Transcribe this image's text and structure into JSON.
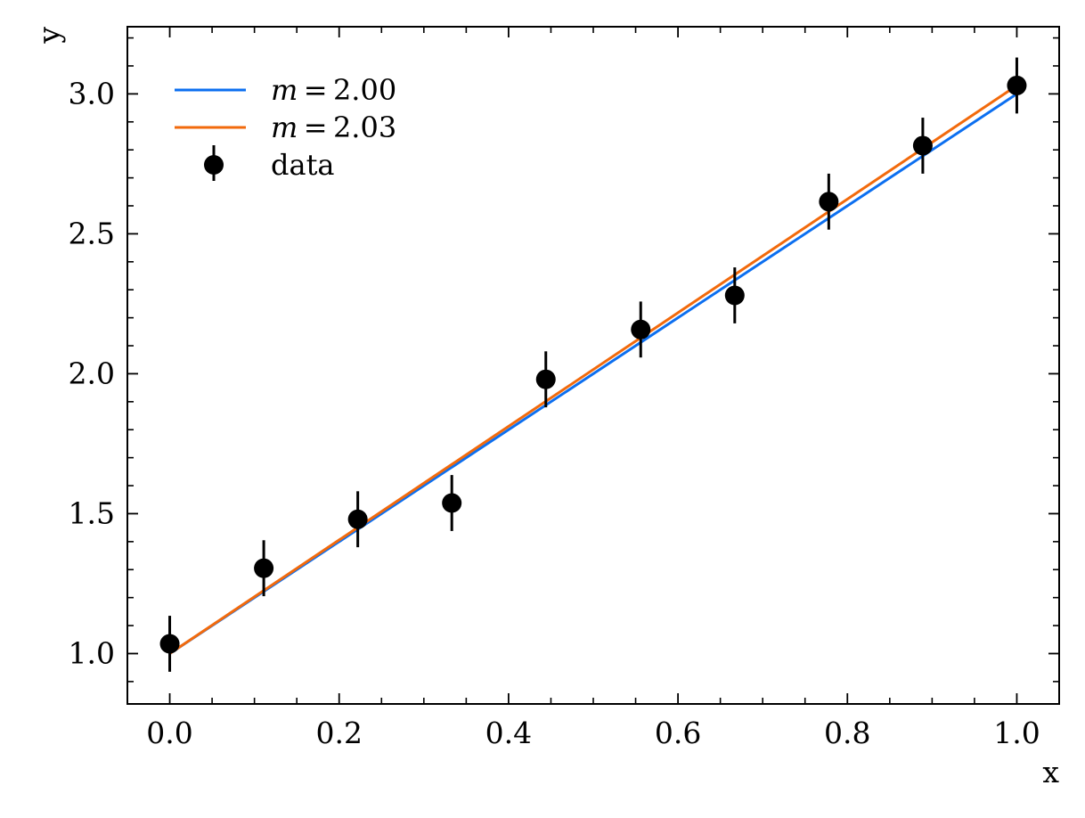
{
  "chart_data": {
    "type": "line",
    "xlabel": "x",
    "ylabel": "y",
    "xlim": [
      -0.05,
      1.05
    ],
    "ylim": [
      0.82,
      3.24
    ],
    "xticks": [
      0.0,
      0.2,
      0.4,
      0.6,
      0.8,
      1.0
    ],
    "xtick_labels": [
      "0.0",
      "0.2",
      "0.4",
      "0.6",
      "0.8",
      "1.0"
    ],
    "xminor_step": 0.05,
    "yticks": [
      1.0,
      1.5,
      2.0,
      2.5,
      3.0
    ],
    "ytick_labels": [
      "1.0",
      "1.5",
      "2.0",
      "2.5",
      "3.0"
    ],
    "yminor_step": 0.1,
    "grid": false,
    "legend_position": "top-left",
    "series": [
      {
        "name": "m = 2.00",
        "legend_label": {
          "italic": "m",
          "rest": " = 2.00"
        },
        "kind": "line",
        "color": "#0C6FF0",
        "x": [
          0.0,
          1.0
        ],
        "y": [
          1.0,
          3.0
        ]
      },
      {
        "name": "m = 2.03",
        "legend_label": {
          "italic": "m",
          "rest": " = 2.03"
        },
        "kind": "line",
        "color": "#F26A0C",
        "x": [
          0.0,
          1.0
        ],
        "y": [
          1.0,
          3.03
        ]
      },
      {
        "name": "data",
        "legend_label": {
          "italic": "",
          "rest": "data"
        },
        "kind": "errorbar",
        "color": "#000000",
        "x": [
          0.0,
          0.111,
          0.222,
          0.333,
          0.444,
          0.556,
          0.667,
          0.778,
          0.889,
          1.0
        ],
        "y": [
          1.035,
          1.305,
          1.48,
          1.538,
          1.98,
          2.158,
          2.28,
          2.615,
          2.815,
          3.03
        ],
        "yerr": 0.1
      }
    ]
  }
}
